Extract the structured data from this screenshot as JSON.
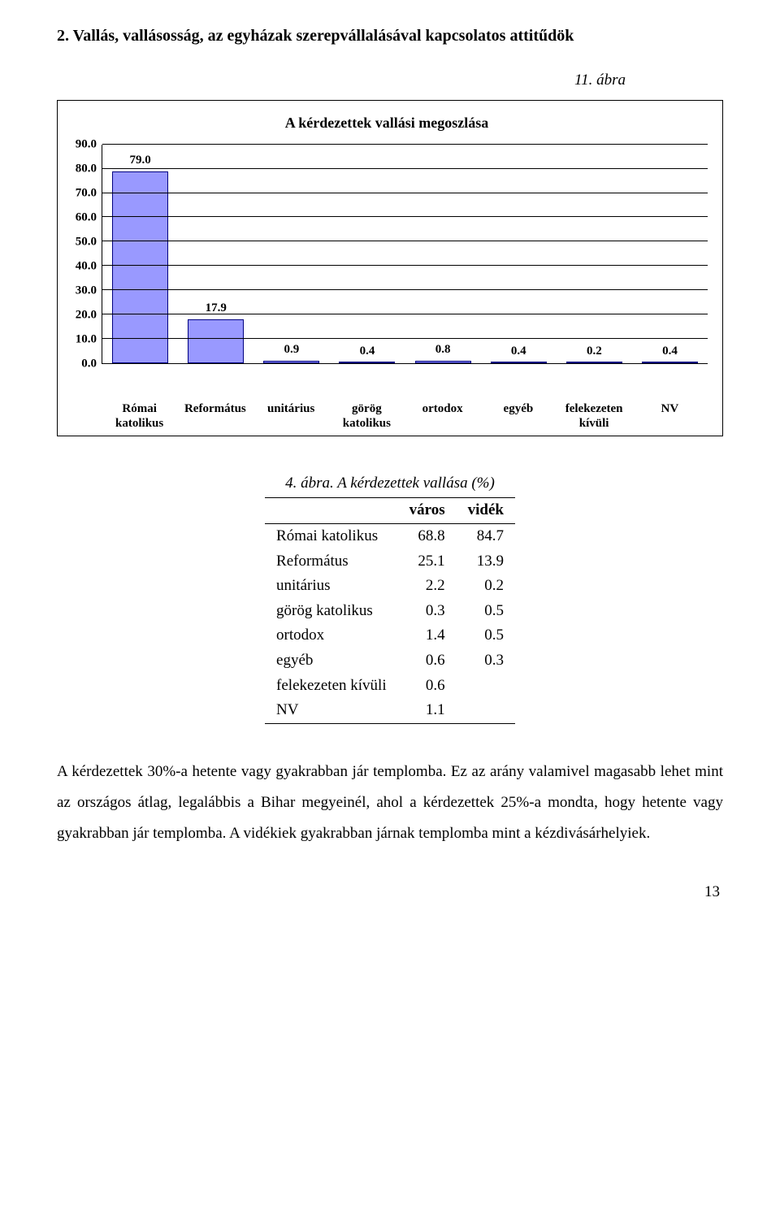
{
  "section_title": "2. Vallás, vallásosság, az egyházak szerepvállalásával kapcsolatos attitűdök",
  "figure_top_label": "11. ábra",
  "chart": {
    "type": "bar",
    "title": "A kérdezettek vallási megoszlása",
    "ymax": 90,
    "ystep": 10,
    "bar_color": "#9999ff",
    "bar_border_color": "#000080",
    "grid_color": "#000000",
    "background_color": "#ffffff",
    "categories": [
      "Római\nkatolikus",
      "Református",
      "unitárius",
      "görög\nkatolikus",
      "ortodox",
      "egyéb",
      "felekezeten\nkívüli",
      "NV"
    ],
    "values": [
      79.0,
      17.9,
      0.9,
      0.4,
      0.8,
      0.4,
      0.2,
      0.4
    ],
    "value_labels": [
      "79.0",
      "17.9",
      "0.9",
      "0.4",
      "0.8",
      "0.4",
      "0.2",
      "0.4"
    ],
    "y_ticks": [
      "0.0",
      "10.0",
      "20.0",
      "30.0",
      "40.0",
      "50.0",
      "60.0",
      "70.0",
      "80.0",
      "90.0"
    ]
  },
  "table": {
    "caption": "4. ábra. A kérdezettek vallása (%)",
    "header_label_city": "város",
    "header_label_country": "vidék",
    "rows": [
      {
        "label": "Római katolikus",
        "city": "68.8",
        "country": "84.7"
      },
      {
        "label": "Református",
        "city": "25.1",
        "country": "13.9"
      },
      {
        "label": "unitárius",
        "city": "2.2",
        "country": "0.2"
      },
      {
        "label": "görög katolikus",
        "city": "0.3",
        "country": "0.5"
      },
      {
        "label": "ortodox",
        "city": "1.4",
        "country": "0.5"
      },
      {
        "label": "egyéb",
        "city": "0.6",
        "country": "0.3"
      },
      {
        "label": "felekezeten kívüli",
        "city": "0.6",
        "country": ""
      },
      {
        "label": "NV",
        "city": "1.1",
        "country": ""
      }
    ]
  },
  "paragraph": "A kérdezettek 30%-a hetente vagy gyakrabban jár templomba. Ez az arány valamivel magasabb lehet mint az országos átlag, legalábbis a Bihar megyeinél, ahol a kérdezettek 25%-a mondta, hogy hetente vagy  gyakrabban jár templomba. A vidékiek  gyakrabban járnak templomba mint a  kézdivásárhelyiek.",
  "page_number": "13"
}
